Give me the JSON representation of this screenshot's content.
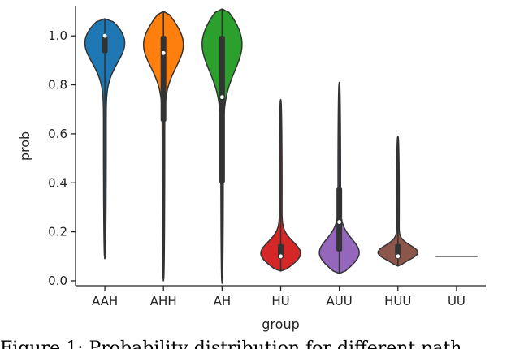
{
  "chart_data": {
    "type": "violin",
    "xlabel": "group",
    "ylabel": "prob",
    "ylim": [
      -0.02,
      1.12
    ],
    "yticks": [
      0.0,
      0.2,
      0.4,
      0.6,
      0.8,
      1.0
    ],
    "ytick_labels": [
      "0.0",
      "0.2",
      "0.4",
      "0.6",
      "0.8",
      "1.0"
    ],
    "grid": false,
    "categories": [
      "AAH",
      "AHH",
      "AH",
      "HU",
      "AUU",
      "HUU",
      "UU"
    ],
    "series": [
      {
        "category": "AAH",
        "color": "#1f77b4",
        "min": 0.09,
        "max": 1.07,
        "median": 1.0,
        "q1": 0.93,
        "q3": 1.0,
        "mode": 1.0,
        "spread": 0.09
      },
      {
        "category": "AHH",
        "color": "#ff7f0e",
        "min": 0.0,
        "max": 1.1,
        "median": 0.93,
        "q1": 0.65,
        "q3": 1.0,
        "mode": 0.99,
        "spread": 0.1
      },
      {
        "category": "AH",
        "color": "#2ca02c",
        "min": -0.01,
        "max": 1.11,
        "median": 0.75,
        "q1": 0.4,
        "q3": 1.0,
        "mode": 1.0,
        "spread": 0.12
      },
      {
        "category": "HU",
        "color": "#d62728",
        "min": 0.04,
        "max": 0.74,
        "median": 0.1,
        "q1": 0.09,
        "q3": 0.15,
        "mode": 0.1,
        "spread": 0.05
      },
      {
        "category": "AUU",
        "color": "#9467bd",
        "min": 0.03,
        "max": 0.81,
        "median": 0.24,
        "q1": 0.12,
        "q3": 0.38,
        "mode": 0.1,
        "spread": 0.06
      },
      {
        "category": "HUU",
        "color": "#8c564b",
        "min": 0.06,
        "max": 0.59,
        "median": 0.1,
        "q1": 0.09,
        "q3": 0.15,
        "mode": 0.11,
        "spread": 0.03
      },
      {
        "category": "UU",
        "color": "#444444",
        "min": 0.1,
        "max": 0.1,
        "median": 0.1,
        "q1": 0.1,
        "q3": 0.1,
        "mode": 0.1,
        "spread": 0.0
      }
    ]
  },
  "caption": "Figure 1:  Probability distribution for different path"
}
